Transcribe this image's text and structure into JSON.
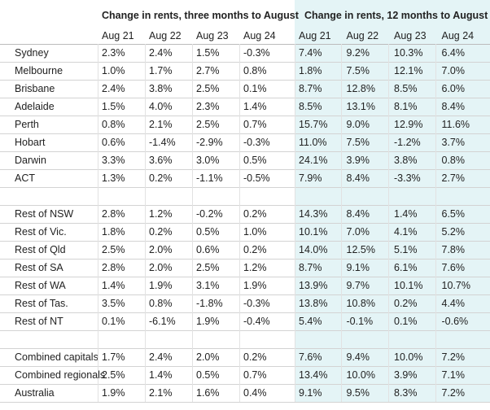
{
  "table": {
    "group_headers": [
      "Change in rents, three months to August",
      "Change in rents, 12 months to August"
    ],
    "columns": [
      "Aug 21",
      "Aug 22",
      "Aug 23",
      "Aug 24",
      "Aug 21",
      "Aug 22",
      "Aug 23",
      "Aug 24"
    ],
    "sections": [
      {
        "rows": [
          {
            "label": "Sydney",
            "values": [
              "2.3%",
              "2.4%",
              "1.5%",
              "-0.3%",
              "7.4%",
              "9.2%",
              "10.3%",
              "6.4%"
            ]
          },
          {
            "label": "Melbourne",
            "values": [
              "1.0%",
              "1.7%",
              "2.7%",
              "0.8%",
              "1.8%",
              "7.5%",
              "12.1%",
              "7.0%"
            ]
          },
          {
            "label": "Brisbane",
            "values": [
              "2.4%",
              "3.8%",
              "2.5%",
              "0.1%",
              "8.7%",
              "12.8%",
              "8.5%",
              "6.0%"
            ]
          },
          {
            "label": "Adelaide",
            "values": [
              "1.5%",
              "4.0%",
              "2.3%",
              "1.4%",
              "8.5%",
              "13.1%",
              "8.1%",
              "8.4%"
            ]
          },
          {
            "label": "Perth",
            "values": [
              "0.8%",
              "2.1%",
              "2.5%",
              "0.7%",
              "15.7%",
              "9.0%",
              "12.9%",
              "11.6%"
            ]
          },
          {
            "label": "Hobart",
            "values": [
              "0.6%",
              "-1.4%",
              "-2.9%",
              "-0.3%",
              "11.0%",
              "7.5%",
              "-1.2%",
              "3.7%"
            ]
          },
          {
            "label": "Darwin",
            "values": [
              "3.3%",
              "3.6%",
              "3.0%",
              "0.5%",
              "24.1%",
              "3.9%",
              "3.8%",
              "0.8%"
            ]
          },
          {
            "label": "ACT",
            "values": [
              "1.3%",
              "0.2%",
              "-1.1%",
              "-0.5%",
              "7.9%",
              "8.4%",
              "-3.3%",
              "2.7%"
            ]
          }
        ]
      },
      {
        "rows": [
          {
            "label": "Rest of NSW",
            "values": [
              "2.8%",
              "1.2%",
              "-0.2%",
              "0.2%",
              "14.3%",
              "8.4%",
              "1.4%",
              "6.5%"
            ]
          },
          {
            "label": "Rest of Vic.",
            "values": [
              "1.8%",
              "0.2%",
              "0.5%",
              "1.0%",
              "10.1%",
              "7.0%",
              "4.1%",
              "5.2%"
            ]
          },
          {
            "label": "Rest of Qld",
            "values": [
              "2.5%",
              "2.0%",
              "0.6%",
              "0.2%",
              "14.0%",
              "12.5%",
              "5.1%",
              "7.8%"
            ]
          },
          {
            "label": "Rest of SA",
            "values": [
              "2.8%",
              "2.0%",
              "2.5%",
              "1.2%",
              "8.7%",
              "9.1%",
              "6.1%",
              "7.6%"
            ]
          },
          {
            "label": "Rest of WA",
            "values": [
              "1.4%",
              "1.9%",
              "3.1%",
              "1.9%",
              "13.9%",
              "9.7%",
              "10.1%",
              "10.7%"
            ]
          },
          {
            "label": "Rest of Tas.",
            "values": [
              "3.5%",
              "0.8%",
              "-1.8%",
              "-0.3%",
              "13.8%",
              "10.8%",
              "0.2%",
              "4.4%"
            ]
          },
          {
            "label": "Rest of NT",
            "values": [
              "0.1%",
              "-6.1%",
              "1.9%",
              "-0.4%",
              "5.4%",
              "-0.1%",
              "0.1%",
              "-0.6%"
            ]
          }
        ]
      },
      {
        "rows": [
          {
            "label": "Combined capitals",
            "values": [
              "1.7%",
              "2.4%",
              "2.0%",
              "0.2%",
              "7.6%",
              "9.4%",
              "10.0%",
              "7.2%"
            ]
          },
          {
            "label": "Combined regionals",
            "values": [
              "2.5%",
              "1.4%",
              "0.5%",
              "0.7%",
              "13.4%",
              "10.0%",
              "3.9%",
              "7.1%"
            ]
          },
          {
            "label": "Australia",
            "values": [
              "1.9%",
              "2.1%",
              "1.6%",
              "0.4%",
              "9.1%",
              "9.5%",
              "8.3%",
              "7.2%"
            ]
          }
        ]
      }
    ]
  }
}
